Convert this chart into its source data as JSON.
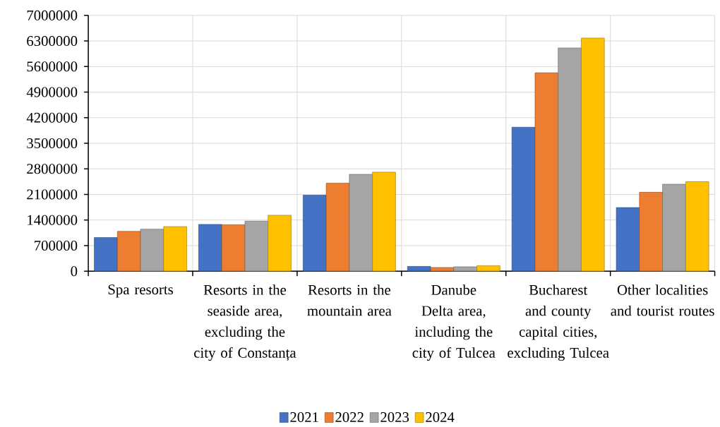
{
  "chart_data": {
    "type": "bar",
    "categories": [
      "Spa resorts",
      "Resorts in the seaside area, excluding the city of Constanța",
      "Resorts in the mountain area",
      "Danube Delta area, including the city of Tulcea",
      "Bucharest and county capital cities, excluding Tulcea",
      "Other localities and tourist routes"
    ],
    "series": [
      {
        "name": "2021",
        "color": "#4472c4",
        "values": [
          920000,
          1280000,
          2080000,
          130000,
          3940000,
          1740000
        ]
      },
      {
        "name": "2022",
        "color": "#ed7d31",
        "values": [
          1090000,
          1270000,
          2410000,
          100000,
          5430000,
          2160000
        ]
      },
      {
        "name": "2023",
        "color": "#a5a5a5",
        "values": [
          1150000,
          1370000,
          2650000,
          120000,
          6110000,
          2380000
        ]
      },
      {
        "name": "2024",
        "color": "#ffc000",
        "values": [
          1220000,
          1530000,
          2710000,
          150000,
          6380000,
          2450000
        ]
      }
    ],
    "ylim": [
      0,
      7000000
    ],
    "yticks": [
      0,
      700000,
      1400000,
      2100000,
      2800000,
      3500000,
      4200000,
      4900000,
      5600000,
      6300000,
      7000000
    ],
    "grid": true,
    "legend": "bottom"
  }
}
